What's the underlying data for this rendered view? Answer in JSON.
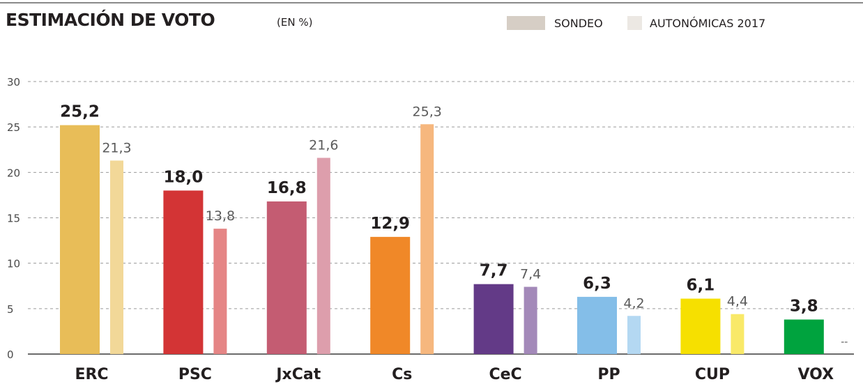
{
  "header": {
    "title": "ESTIMACIÓN DE VOTO",
    "unit": "(EN %)"
  },
  "colors": {
    "legend_sondeo": "#d6cec5",
    "legend_2017": "#ece8e3",
    "axis": "#3a3a3a",
    "grid": "#9a9a9a"
  },
  "chart_data": {
    "type": "bar",
    "title": "ESTIMACIÓN DE VOTO",
    "subtitle": "(EN %)",
    "xlabel": "",
    "ylabel": "",
    "ylim": [
      0,
      30
    ],
    "yticks": [
      "0",
      "5",
      "10",
      "15",
      "20",
      "25",
      "30"
    ],
    "ytick_values": [
      0,
      5,
      10,
      15,
      20,
      25,
      30
    ],
    "grid": true,
    "legend_position": "top-right",
    "categories": [
      "ERC",
      "PSC",
      "JxCat",
      "Cs",
      "CeC",
      "PP",
      "CUP",
      "VOX"
    ],
    "series": [
      {
        "name": "SONDEO",
        "values": [
          25.2,
          18.0,
          16.8,
          12.9,
          7.7,
          6.3,
          6.1,
          3.8
        ],
        "labels": [
          "25,2",
          "18,0",
          "16,8",
          "12,9",
          "7,7",
          "6,3",
          "6,1",
          "3,8"
        ],
        "colors": [
          "#e8bd58",
          "#d33435",
          "#c45c72",
          "#f08828",
          "#633a87",
          "#84bee8",
          "#f6e000",
          "#00a33e"
        ]
      },
      {
        "name": "AUTONÓMICAS 2017",
        "values": [
          21.3,
          13.8,
          21.6,
          25.3,
          7.4,
          4.2,
          4.4,
          null
        ],
        "labels": [
          "21,3",
          "13,8",
          "21,6",
          "25,3",
          "7,4",
          "4,2",
          "4,4",
          "--"
        ],
        "colors": [
          "#f2d898",
          "#e58585",
          "#dd9eac",
          "#f6b77e",
          "#a389b9",
          "#b4d8f2",
          "#f9e968",
          "#7fd19e"
        ]
      }
    ]
  }
}
